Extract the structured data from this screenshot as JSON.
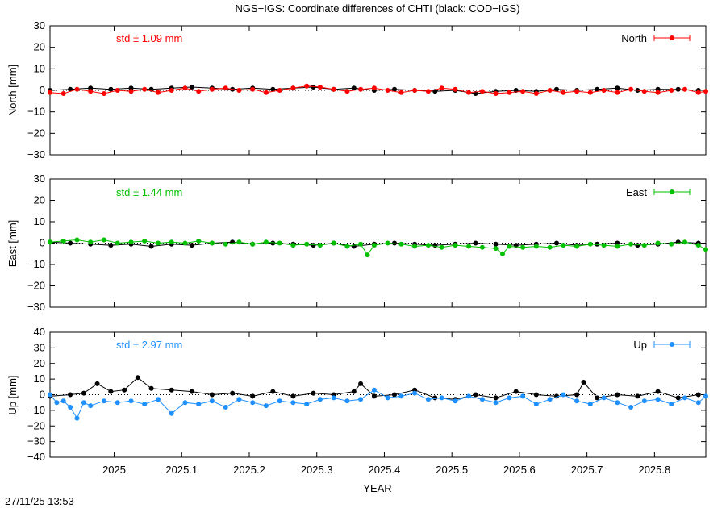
{
  "title": "NGS−IGS: Coordinate differences of CHTI (black: COD−IGS)",
  "timestamp": "27/11/25 13:53",
  "xlabel": "YEAR",
  "x_ticks": [
    "2025",
    "2025.1",
    "2025.2",
    "2025.3",
    "2025.4",
    "2025.5",
    "2025.6",
    "2025.7",
    "2025.8"
  ],
  "colors": {
    "north": "#ff0000",
    "east": "#00c000",
    "up": "#1e90ff",
    "reference": "#000000"
  },
  "chart_data": [
    {
      "type": "scatter",
      "name": "north",
      "ylabel": "North [mm]",
      "legend": "North",
      "legend_position": "top-right",
      "std_label": "std ± 1.09 mm",
      "ylim": [
        -30,
        30
      ],
      "y_ticks": [
        "30",
        "20",
        "10",
        "0",
        "−10",
        "−20",
        "−30"
      ],
      "xlim": [
        2024.905,
        2025.876
      ],
      "series": [
        {
          "name": "North",
          "color": "#ff0000",
          "x": [
            2024.905,
            2024.925,
            2024.945,
            2024.965,
            2024.985,
            2025.005,
            2025.025,
            2025.045,
            2025.065,
            2025.085,
            2025.105,
            2025.125,
            2025.145,
            2025.165,
            2025.185,
            2025.205,
            2025.225,
            2025.245,
            2025.265,
            2025.285,
            2025.305,
            2025.325,
            2025.345,
            2025.365,
            2025.385,
            2025.405,
            2025.425,
            2025.445,
            2025.465,
            2025.485,
            2025.505,
            2025.525,
            2025.545,
            2025.565,
            2025.585,
            2025.605,
            2025.625,
            2025.645,
            2025.665,
            2025.685,
            2025.705,
            2025.725,
            2025.745,
            2025.765,
            2025.785,
            2025.805,
            2025.825,
            2025.845,
            2025.865,
            2025.876
          ],
          "y": [
            -1.0,
            -1.5,
            0.5,
            -0.5,
            -1.5,
            0.0,
            -0.5,
            0.5,
            -1.0,
            0.0,
            1.0,
            -0.5,
            0.5,
            1.0,
            0.0,
            0.5,
            -1.0,
            0.0,
            1.0,
            2.0,
            1.5,
            0.5,
            -0.5,
            0.5,
            1.0,
            0.0,
            -1.0,
            0.0,
            -0.5,
            1.0,
            0.5,
            -1.0,
            -0.5,
            -1.5,
            -1.0,
            -0.5,
            -1.5,
            0.0,
            -1.0,
            -0.5,
            -1.0,
            0.0,
            -1.0,
            0.5,
            -0.5,
            -1.0,
            0.0,
            0.5,
            -1.0,
            -0.5
          ]
        },
        {
          "name": "COD−IGS",
          "color": "#000000",
          "x": [
            2024.905,
            2024.935,
            2024.965,
            2024.995,
            2025.025,
            2025.055,
            2025.085,
            2025.115,
            2025.145,
            2025.175,
            2025.205,
            2025.235,
            2025.265,
            2025.295,
            2025.325,
            2025.355,
            2025.385,
            2025.415,
            2025.445,
            2025.475,
            2025.505,
            2025.535,
            2025.565,
            2025.595,
            2025.625,
            2025.655,
            2025.685,
            2025.715,
            2025.745,
            2025.775,
            2025.805,
            2025.835,
            2025.865
          ],
          "y": [
            0.0,
            0.5,
            1.0,
            0.5,
            1.0,
            0.5,
            1.0,
            1.5,
            1.0,
            0.5,
            1.0,
            0.5,
            1.0,
            1.5,
            0.5,
            1.0,
            0.0,
            0.5,
            0.0,
            -0.5,
            0.0,
            -1.5,
            -0.5,
            0.0,
            -0.5,
            0.5,
            0.0,
            0.5,
            1.0,
            0.0,
            0.5,
            0.5,
            0.0
          ]
        }
      ]
    },
    {
      "type": "scatter",
      "name": "east",
      "ylabel": "East [mm]",
      "legend": "East",
      "legend_position": "top-right",
      "std_label": "std ± 1.44 mm",
      "ylim": [
        -30,
        30
      ],
      "y_ticks": [
        "30",
        "20",
        "10",
        "0",
        "−10",
        "−20",
        "−30"
      ],
      "xlim": [
        2024.905,
        2025.876
      ],
      "series": [
        {
          "name": "East",
          "color": "#00c000",
          "x": [
            2024.905,
            2024.925,
            2024.945,
            2024.965,
            2024.985,
            2025.005,
            2025.025,
            2025.045,
            2025.065,
            2025.085,
            2025.105,
            2025.125,
            2025.145,
            2025.165,
            2025.185,
            2025.205,
            2025.225,
            2025.245,
            2025.265,
            2025.285,
            2025.305,
            2025.325,
            2025.345,
            2025.365,
            2025.375,
            2025.385,
            2025.405,
            2025.425,
            2025.445,
            2025.465,
            2025.485,
            2025.505,
            2025.525,
            2025.545,
            2025.565,
            2025.575,
            2025.585,
            2025.605,
            2025.625,
            2025.645,
            2025.665,
            2025.685,
            2025.705,
            2025.725,
            2025.745,
            2025.765,
            2025.785,
            2025.805,
            2025.825,
            2025.845,
            2025.865,
            2025.876
          ],
          "y": [
            0.5,
            1.0,
            1.5,
            0.5,
            1.5,
            0.0,
            0.5,
            1.0,
            0.0,
            0.5,
            0.0,
            1.0,
            0.0,
            -0.5,
            0.5,
            -0.5,
            0.5,
            0.0,
            -1.0,
            -0.5,
            -1.0,
            0.0,
            -1.5,
            -0.5,
            -5.5,
            -1.0,
            0.0,
            -0.5,
            -1.5,
            -1.0,
            -2.0,
            -1.0,
            -1.5,
            -2.0,
            -2.5,
            -5.0,
            -1.5,
            -2.0,
            -1.5,
            -2.0,
            -1.0,
            -1.5,
            -0.5,
            -1.0,
            -1.5,
            -0.5,
            -1.0,
            0.0,
            -0.5,
            0.5,
            -1.0,
            -3.0
          ]
        },
        {
          "name": "COD−IGS",
          "color": "#000000",
          "x": [
            2024.905,
            2024.935,
            2024.965,
            2024.995,
            2025.025,
            2025.055,
            2025.085,
            2025.115,
            2025.145,
            2025.175,
            2025.205,
            2025.235,
            2025.265,
            2025.295,
            2025.325,
            2025.355,
            2025.385,
            2025.415,
            2025.445,
            2025.475,
            2025.505,
            2025.535,
            2025.565,
            2025.595,
            2025.625,
            2025.655,
            2025.685,
            2025.715,
            2025.745,
            2025.775,
            2025.805,
            2025.835,
            2025.865
          ],
          "y": [
            0.5,
            0.0,
            -0.5,
            -1.0,
            -0.5,
            -1.5,
            -0.5,
            -1.0,
            0.0,
            0.5,
            -0.5,
            0.0,
            -0.5,
            -1.0,
            0.0,
            -1.5,
            -0.5,
            0.0,
            -0.5,
            -1.0,
            -0.5,
            0.0,
            -0.5,
            -1.0,
            -0.5,
            0.0,
            -1.0,
            -0.5,
            0.0,
            -1.0,
            -0.5,
            0.5,
            0.0
          ]
        }
      ]
    },
    {
      "type": "scatter",
      "name": "up",
      "ylabel": "Up [mm]",
      "legend": "Up",
      "legend_position": "top-right",
      "std_label": "std ± 2.97 mm",
      "ylim": [
        -40,
        40
      ],
      "y_ticks": [
        "40",
        "30",
        "20",
        "10",
        "0",
        "−10",
        "−20",
        "−30",
        "−40"
      ],
      "xlim": [
        2024.905,
        2025.876
      ],
      "series": [
        {
          "name": "Up",
          "color": "#1e90ff",
          "x": [
            2024.905,
            2024.915,
            2024.925,
            2024.935,
            2024.945,
            2024.955,
            2024.965,
            2024.985,
            2025.005,
            2025.025,
            2025.045,
            2025.065,
            2025.085,
            2025.105,
            2025.125,
            2025.145,
            2025.165,
            2025.185,
            2025.205,
            2025.225,
            2025.245,
            2025.265,
            2025.285,
            2025.305,
            2025.325,
            2025.345,
            2025.365,
            2025.385,
            2025.405,
            2025.425,
            2025.445,
            2025.465,
            2025.485,
            2025.505,
            2025.525,
            2025.545,
            2025.565,
            2025.585,
            2025.605,
            2025.625,
            2025.645,
            2025.665,
            2025.685,
            2025.705,
            2025.725,
            2025.745,
            2025.765,
            2025.785,
            2025.805,
            2025.825,
            2025.845,
            2025.865,
            2025.876
          ],
          "y": [
            0.0,
            -5.0,
            -4.0,
            -8.0,
            -15.0,
            -5.0,
            -7.0,
            -4.0,
            -5.0,
            -4.0,
            -6.0,
            -3.0,
            -12.0,
            -5.0,
            -6.0,
            -4.0,
            -8.0,
            -3.0,
            -5.0,
            -7.0,
            -4.0,
            -5.0,
            -6.0,
            -3.0,
            -2.0,
            -4.0,
            -3.0,
            3.0,
            -2.0,
            -1.0,
            1.0,
            -3.0,
            -2.0,
            -4.0,
            -1.0,
            -3.0,
            -5.0,
            -2.0,
            -1.0,
            -6.0,
            -3.0,
            0.0,
            -4.0,
            -6.0,
            -2.0,
            -5.0,
            -8.0,
            -4.0,
            -3.0,
            -6.0,
            -2.0,
            -5.0,
            -1.0
          ]
        },
        {
          "name": "COD−IGS",
          "color": "#000000",
          "x": [
            2024.905,
            2024.935,
            2024.955,
            2024.975,
            2024.995,
            2025.015,
            2025.035,
            2025.055,
            2025.085,
            2025.115,
            2025.145,
            2025.175,
            2025.205,
            2025.235,
            2025.265,
            2025.295,
            2025.325,
            2025.355,
            2025.365,
            2025.385,
            2025.415,
            2025.445,
            2025.475,
            2025.505,
            2025.535,
            2025.565,
            2025.595,
            2025.625,
            2025.655,
            2025.685,
            2025.695,
            2025.715,
            2025.745,
            2025.775,
            2025.805,
            2025.835,
            2025.865
          ],
          "y": [
            -1.0,
            0.0,
            1.0,
            7.0,
            2.0,
            3.0,
            11.0,
            4.0,
            3.0,
            2.0,
            0.0,
            1.0,
            -1.0,
            2.0,
            -1.0,
            1.0,
            0.0,
            2.0,
            7.0,
            -1.0,
            0.0,
            3.0,
            -2.0,
            -3.0,
            0.0,
            -2.0,
            2.0,
            0.0,
            -1.0,
            0.0,
            8.0,
            -2.0,
            0.0,
            -1.0,
            2.0,
            -2.0,
            0.0
          ]
        }
      ]
    }
  ]
}
